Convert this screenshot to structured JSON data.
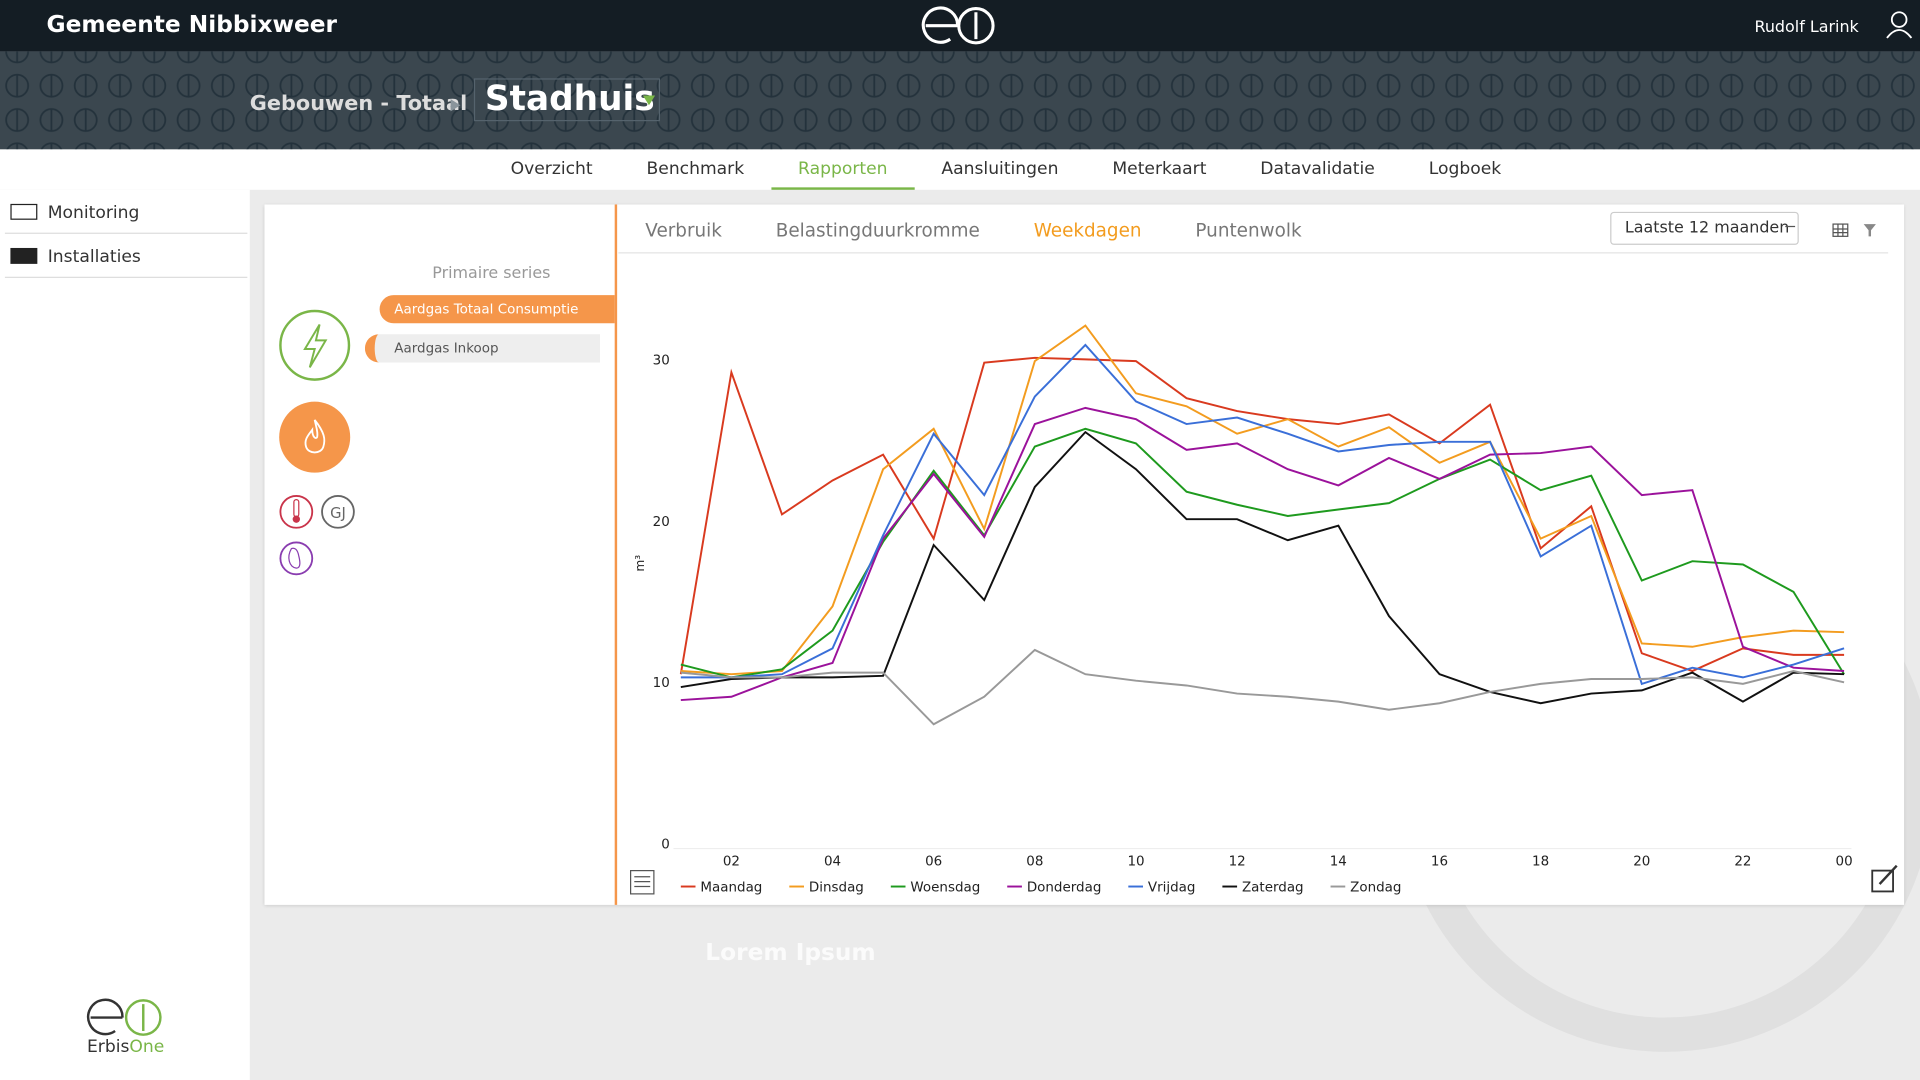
{
  "header": {
    "title": "Gemeente Nibbixweer",
    "user": "Rudolf Larink"
  },
  "breadcrumb": {
    "parent": "Gebouwen - Totaal",
    "current": "Stadhuis"
  },
  "nav": {
    "tabs": [
      "Overzicht",
      "Benchmark",
      "Rapporten",
      "Aansluitingen",
      "Meterkaart",
      "Datavalidatie",
      "Logboek"
    ],
    "active": 2
  },
  "sidebar": {
    "items": [
      "Monitoring",
      "Installaties"
    ],
    "logo": [
      "Erbis",
      "One"
    ]
  },
  "panel": {
    "heading": "Primaire series",
    "series": [
      "Aardgas Totaal Consumptie",
      "Aardgas Inkoop"
    ],
    "badge": "GJ"
  },
  "report": {
    "tabs": [
      "Verbruik",
      "Belastingduurkromme",
      "Weekdagen",
      "Puntenwolk"
    ],
    "active": 2,
    "period": "Laatste 12 maanden"
  },
  "footer_text": "Lorem Ipsum",
  "chart_data": {
    "type": "line",
    "y_label": "m³",
    "categories": [
      null,
      "02",
      null,
      "04",
      null,
      "06",
      null,
      "08",
      null,
      "10",
      null,
      "12",
      null,
      "14",
      null,
      "16",
      null,
      "18",
      null,
      "20",
      null,
      "22",
      null,
      "00"
    ],
    "ylim": [
      0,
      33
    ],
    "yticks": [
      0,
      10,
      20,
      30
    ],
    "series": [
      {
        "name": "Maandag",
        "color": "#d93a1f",
        "values": [
          10.5,
          29.2,
          20.4,
          22.5,
          24.1,
          18.9,
          29.8,
          30.1,
          30.0,
          29.9,
          27.6,
          26.8,
          26.3,
          26.0,
          26.6,
          24.8,
          27.2,
          18.3,
          20.9,
          11.8,
          10.7,
          12.1,
          11.7,
          11.7
        ]
      },
      {
        "name": "Dinsdag",
        "color": "#f39c1f",
        "values": [
          10.7,
          10.5,
          10.7,
          14.7,
          23.2,
          25.7,
          19.5,
          29.9,
          32.1,
          27.9,
          27.1,
          25.4,
          26.3,
          24.6,
          25.8,
          23.6,
          24.9,
          18.9,
          20.3,
          12.4,
          12.2,
          12.8,
          13.2,
          13.1
        ]
      },
      {
        "name": "Woensdag",
        "color": "#1e9a1e",
        "values": [
          11.1,
          10.3,
          10.8,
          13.2,
          18.7,
          23.1,
          19.1,
          24.6,
          25.7,
          24.8,
          21.8,
          21.0,
          20.3,
          20.7,
          21.1,
          22.6,
          23.8,
          21.9,
          22.8,
          16.3,
          17.5,
          17.3,
          15.6,
          10.5
        ]
      },
      {
        "name": "Donderdag",
        "color": "#9b129b",
        "values": [
          8.9,
          9.1,
          10.3,
          11.2,
          18.9,
          22.9,
          19.0,
          26.0,
          27.0,
          26.3,
          24.4,
          24.8,
          23.2,
          22.2,
          23.9,
          22.6,
          24.1,
          24.2,
          24.6,
          21.6,
          21.9,
          12.2,
          10.9,
          10.7
        ]
      },
      {
        "name": "Vrijdag",
        "color": "#3a6fd8",
        "values": [
          10.3,
          10.3,
          10.5,
          12.1,
          19.1,
          25.4,
          21.6,
          27.7,
          30.9,
          27.4,
          26.0,
          26.4,
          25.4,
          24.3,
          24.7,
          24.9,
          24.9,
          17.8,
          19.7,
          9.9,
          10.9,
          10.3,
          11.1,
          12.1
        ]
      },
      {
        "name": "Zaterdag",
        "color": "#111111",
        "values": [
          9.7,
          10.2,
          10.3,
          10.3,
          10.4,
          18.5,
          15.1,
          22.1,
          25.5,
          23.2,
          20.1,
          20.1,
          18.8,
          19.7,
          14.1,
          10.5,
          9.4,
          8.7,
          9.3,
          9.5,
          10.6,
          8.8,
          10.6,
          10.5
        ]
      },
      {
        "name": "Zondag",
        "color": "#999999",
        "values": [
          10.6,
          10.3,
          10.3,
          10.6,
          10.6,
          7.4,
          9.1,
          12.0,
          10.5,
          10.1,
          9.8,
          9.3,
          9.1,
          8.8,
          8.3,
          8.7,
          9.4,
          9.9,
          10.2,
          10.2,
          10.3,
          9.9,
          10.7,
          10.0
        ]
      }
    ]
  }
}
